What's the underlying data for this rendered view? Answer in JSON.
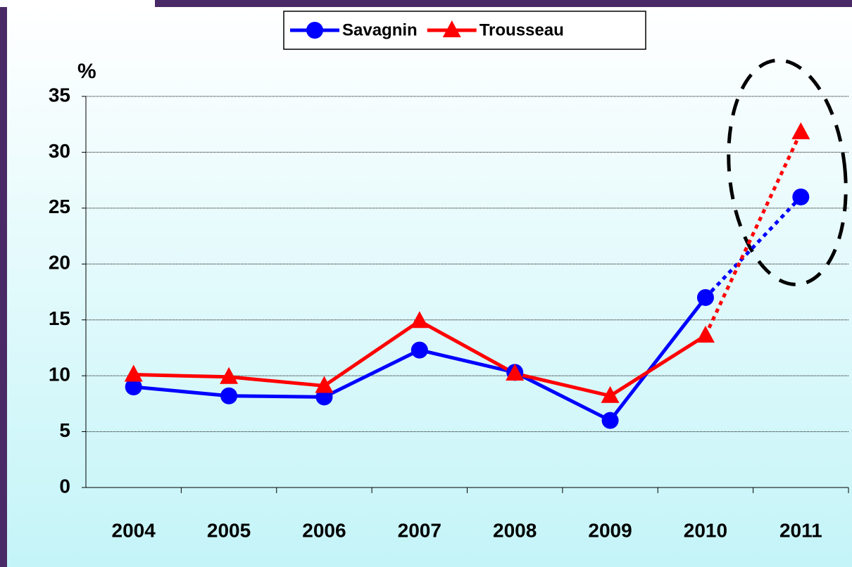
{
  "chart_data": {
    "type": "line",
    "y_label": "%",
    "categories": [
      "2004",
      "2005",
      "2006",
      "2007",
      "2008",
      "2009",
      "2010",
      "2011"
    ],
    "series": [
      {
        "name": "Savagnin",
        "color": "#0000ff",
        "marker": "circle",
        "values": [
          9.0,
          8.2,
          8.1,
          12.3,
          10.3,
          6.0,
          17.0,
          26.0
        ]
      },
      {
        "name": "Trousseau",
        "color": "#ff0000",
        "marker": "triangle",
        "values": [
          10.1,
          9.9,
          9.1,
          14.9,
          10.2,
          8.2,
          13.6,
          31.8
        ]
      }
    ],
    "dotted_last_segment": true,
    "ylim": [
      0,
      35
    ],
    "yticks": [
      0,
      5,
      10,
      15,
      20,
      25,
      30,
      35
    ],
    "grid": true,
    "legend": "top"
  }
}
